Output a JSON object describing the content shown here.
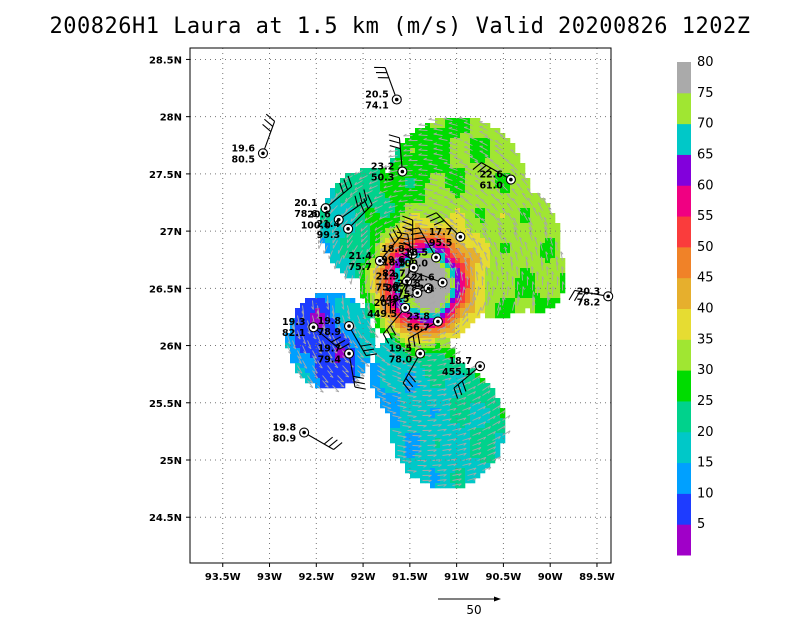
{
  "title": "200826H1 Laura at 1.5 km (m/s) Valid 20200826  1202Z",
  "map": {
    "lon_range": [
      -93.85,
      -89.35
    ],
    "lat_range": [
      24.1,
      28.6
    ],
    "x_ticks": [
      {
        "lon": -93.5,
        "label": "93.5W"
      },
      {
        "lon": -93,
        "label": "93W"
      },
      {
        "lon": -92.5,
        "label": "92.5W"
      },
      {
        "lon": -92,
        "label": "92W"
      },
      {
        "lon": -91.5,
        "label": "91.5W"
      },
      {
        "lon": -91,
        "label": "91W"
      },
      {
        "lon": -90.5,
        "label": "90.5W"
      },
      {
        "lon": -90,
        "label": "90W"
      },
      {
        "lon": -89.5,
        "label": "89.5W"
      }
    ],
    "y_ticks": [
      {
        "lat": 24.5,
        "label": "24.5N"
      },
      {
        "lat": 25,
        "label": "25N"
      },
      {
        "lat": 25.5,
        "label": "25.5N"
      },
      {
        "lat": 26,
        "label": "26N"
      },
      {
        "lat": 26.5,
        "label": "26.5N"
      },
      {
        "lat": 27,
        "label": "27N"
      },
      {
        "lat": 27.5,
        "label": "27.5N"
      },
      {
        "lat": 28,
        "label": "28N"
      },
      {
        "lat": 28.5,
        "label": "28.5N"
      }
    ],
    "grid": "dotted",
    "center": {
      "lon": -91.4,
      "lat": 26.5
    }
  },
  "colorbar": {
    "levels": [
      "5",
      "10",
      "15",
      "20",
      "25",
      "30",
      "35",
      "40",
      "45",
      "50",
      "55",
      "60",
      "65",
      "70",
      "75",
      "80"
    ],
    "colors": [
      "#a000c8",
      "#1e3cff",
      "#00a0ff",
      "#00c8c8",
      "#00d28c",
      "#00dc00",
      "#a0e632",
      "#e6dc32",
      "#e6af2d",
      "#f08228",
      "#fa3c3c",
      "#f00082",
      "#8200dc",
      "#00c8c8",
      "#a0e632",
      "#aaaaaa"
    ]
  },
  "stations": [
    {
      "lon": -93.07,
      "lat": 27.68,
      "temp": "19.6",
      "rh": "80.5",
      "barb_deg": 70
    },
    {
      "lon": -91.64,
      "lat": 28.15,
      "temp": "20.5",
      "rh": "74.1",
      "barb_deg": 110
    },
    {
      "lon": -91.58,
      "lat": 27.52,
      "temp": "23.2",
      "rh": "50.3",
      "barb_deg": 95
    },
    {
      "lon": -90.42,
      "lat": 27.45,
      "temp": "22.6",
      "rh": "61.0",
      "barb_deg": 150
    },
    {
      "lon": -92.4,
      "lat": 27.2,
      "temp": "20.1",
      "rh": "78.6",
      "barb_deg": 40
    },
    {
      "lon": -92.26,
      "lat": 27.1,
      "temp": "20.6",
      "rh": "100.0",
      "barb_deg": 35
    },
    {
      "lon": -92.16,
      "lat": 27.02,
      "temp": "21.4",
      "rh": "99.3",
      "barb_deg": 45
    },
    {
      "lon": -90.96,
      "lat": 26.95,
      "temp": "17.7",
      "rh": "95.5",
      "barb_deg": 135
    },
    {
      "lon": -91.82,
      "lat": 26.74,
      "temp": "21.4",
      "rh": "75.7",
      "barb_deg": 50
    },
    {
      "lon": -91.47,
      "lat": 26.8,
      "temp": "18.8",
      "rh": "99.6",
      "barb_deg": 90
    },
    {
      "lon": -91.22,
      "lat": 26.77,
      "temp": "18.5",
      "rh": "100.0",
      "barb_deg": 120
    },
    {
      "lon": -91.46,
      "lat": 26.68,
      "temp": "18.5",
      "rh": "82.7",
      "barb_deg": 100
    },
    {
      "lon": -91.53,
      "lat": 26.56,
      "temp": "21.9",
      "rh": "75.6",
      "barb_deg": 80
    },
    {
      "lon": -91.3,
      "lat": 26.5,
      "temp": "21.8",
      "rh": "75.6",
      "barb_deg": 170
    },
    {
      "lon": -91.15,
      "lat": 26.55,
      "temp": "21.6",
      "rh": "82.1",
      "barb_deg": 160
    },
    {
      "lon": -91.42,
      "lat": 26.46,
      "temp": "22.7",
      "rh": "449.5",
      "barb_deg": 200
    },
    {
      "lon": -91.55,
      "lat": 26.33,
      "temp": "20.7",
      "rh": "449.5",
      "barb_deg": 230
    },
    {
      "lon": -91.2,
      "lat": 26.21,
      "temp": "23.8",
      "rh": "56.7",
      "barb_deg": 210
    },
    {
      "lon": -92.15,
      "lat": 26.17,
      "temp": "19.8",
      "rh": "78.9",
      "barb_deg": 300
    },
    {
      "lon": -92.53,
      "lat": 26.16,
      "temp": "19.3",
      "rh": "82.1",
      "barb_deg": 320
    },
    {
      "lon": -92.15,
      "lat": 25.93,
      "temp": "19.7",
      "rh": "79.4",
      "barb_deg": 280
    },
    {
      "lon": -91.39,
      "lat": 25.93,
      "temp": "19.5",
      "rh": "78.0",
      "barb_deg": 240
    },
    {
      "lon": -90.75,
      "lat": 25.82,
      "temp": "18.7",
      "rh": "455.1",
      "barb_deg": 220
    },
    {
      "lon": -89.38,
      "lat": 26.43,
      "temp": "20.3",
      "rh": "78.2",
      "barb_deg": 170
    },
    {
      "lon": -92.63,
      "lat": 25.24,
      "temp": "19.8",
      "rh": "80.9",
      "barb_deg": 330
    }
  ],
  "reference_vector": {
    "label": "50"
  }
}
